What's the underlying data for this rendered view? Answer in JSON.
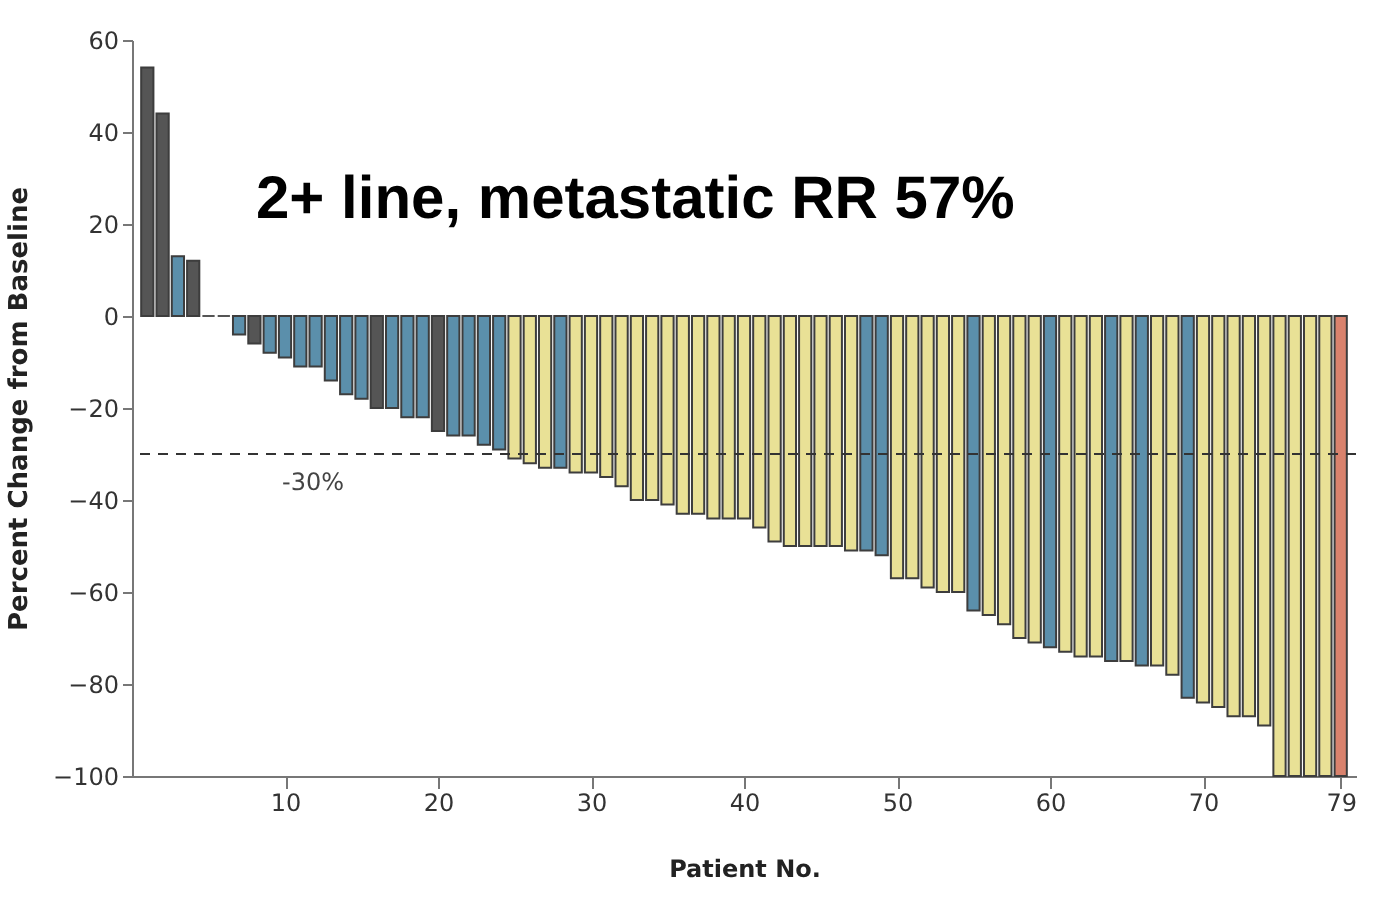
{
  "chart_data": {
    "type": "bar",
    "title": "2+ line, metastatic RR 57%",
    "xlabel": "Patient No.",
    "ylabel": "Percent Change from Baseline",
    "x": [
      1,
      2,
      3,
      4,
      5,
      6,
      7,
      8,
      9,
      10,
      11,
      12,
      13,
      14,
      15,
      16,
      17,
      18,
      19,
      20,
      21,
      22,
      23,
      24,
      25,
      26,
      27,
      28,
      29,
      30,
      31,
      32,
      33,
      34,
      35,
      36,
      37,
      38,
      39,
      40,
      41,
      42,
      43,
      44,
      45,
      46,
      47,
      48,
      49,
      50,
      51,
      52,
      53,
      54,
      55,
      56,
      57,
      58,
      59,
      60,
      61,
      62,
      63,
      64,
      65,
      66,
      67,
      68,
      69,
      70,
      71,
      72,
      73,
      74,
      75,
      76,
      77,
      78,
      79
    ],
    "values": [
      54,
      44,
      13,
      12,
      0,
      0,
      -4,
      -6,
      -8,
      -9,
      -11,
      -11,
      -14,
      -17,
      -18,
      -20,
      -20,
      -22,
      -22,
      -25,
      -26,
      -26,
      -28,
      -29,
      -31,
      -32,
      -33,
      -33,
      -34,
      -34,
      -35,
      -37,
      -40,
      -40,
      -41,
      -43,
      -43,
      -44,
      -44,
      -44,
      -46,
      -49,
      -50,
      -50,
      -50,
      -50,
      -51,
      -51,
      -52,
      -57,
      -57,
      -59,
      -60,
      -60,
      -64,
      -65,
      -67,
      -70,
      -71,
      -72,
      -73,
      -74,
      -74,
      -75,
      -75,
      -76,
      -76,
      -78,
      -83,
      -84,
      -85,
      -87,
      -87,
      -89,
      -100,
      -100,
      -100,
      -100,
      -100
    ],
    "colors": [
      "#555555",
      "#555555",
      "#5b8fab",
      "#555555",
      "#555555",
      "#555555",
      "#5b8fab",
      "#555555",
      "#5b8fab",
      "#5b8fab",
      "#5b8fab",
      "#5b8fab",
      "#5b8fab",
      "#5b8fab",
      "#5b8fab",
      "#555555",
      "#5b8fab",
      "#5b8fab",
      "#5b8fab",
      "#555555",
      "#5b8fab",
      "#5b8fab",
      "#5b8fab",
      "#5b8fab",
      "#e9e196",
      "#e9e196",
      "#e9e196",
      "#5b8fab",
      "#e9e196",
      "#e9e196",
      "#e9e196",
      "#e9e196",
      "#e9e196",
      "#e9e196",
      "#e9e196",
      "#e9e196",
      "#e9e196",
      "#e9e196",
      "#e9e196",
      "#e9e196",
      "#e9e196",
      "#e9e196",
      "#e9e196",
      "#e9e196",
      "#e9e196",
      "#e9e196",
      "#e9e196",
      "#5b8fab",
      "#5b8fab",
      "#e9e196",
      "#e9e196",
      "#e9e196",
      "#e9e196",
      "#e9e196",
      "#5b8fab",
      "#e9e196",
      "#e9e196",
      "#e9e196",
      "#e9e196",
      "#5b8fab",
      "#e9e196",
      "#e9e196",
      "#e9e196",
      "#5b8fab",
      "#e9e196",
      "#5b8fab",
      "#e9e196",
      "#e9e196",
      "#5b8fab",
      "#e9e196",
      "#e9e196",
      "#e9e196",
      "#e9e196",
      "#e9e196",
      "#e9e196",
      "#e9e196",
      "#e9e196",
      "#e9e196",
      "#d9826d"
    ],
    "xlim": [
      0,
      80
    ],
    "xticks": [
      10,
      20,
      30,
      40,
      50,
      60,
      70,
      79
    ],
    "ylim": [
      -100,
      60
    ],
    "yticks": [
      -100,
      -80,
      -60,
      -40,
      -20,
      0,
      20,
      40,
      60
    ],
    "ref_lines": [
      {
        "axis": "y",
        "value": -30,
        "label": "-30%",
        "line_style": "dashed",
        "color": "#333333"
      }
    ],
    "grid": false
  }
}
